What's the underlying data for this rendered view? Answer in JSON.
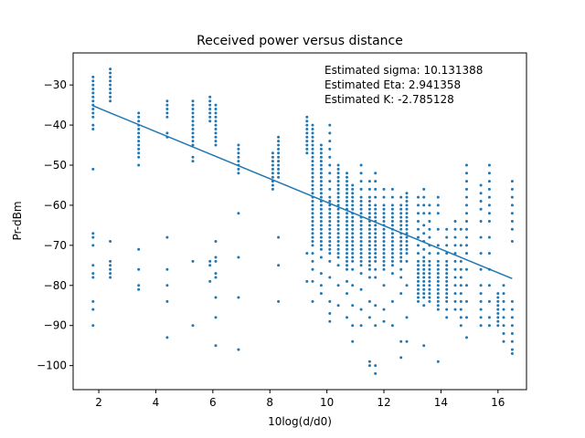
{
  "chart_data": {
    "type": "scatter",
    "title": "Received power versus distance",
    "xlabel": "10log(d/d0)",
    "ylabel": "Pr-dBm",
    "xlim": [
      1.1,
      17.0
    ],
    "ylim": [
      -106,
      -22
    ],
    "xticks": [
      2,
      4,
      6,
      8,
      10,
      12,
      14,
      16
    ],
    "yticks": [
      -30,
      -40,
      -50,
      -60,
      -70,
      -80,
      -90,
      -100
    ],
    "xtick_labels": [
      "2",
      "4",
      "6",
      "8",
      "10",
      "12",
      "14",
      "16"
    ],
    "ytick_labels": [
      "−30",
      "−40",
      "−50",
      "−60",
      "−70",
      "−80",
      "−90",
      "−100"
    ],
    "grid": false,
    "color": "#1f77b4",
    "annotations": [
      "Estimated sigma: 10.131388",
      "Estimated Eta: 2.941358",
      "Estimated K: -2.785128"
    ],
    "fit_line": {
      "x": [
        1.8,
        16.5
      ],
      "y": [
        -35.2,
        -78.3
      ]
    },
    "series": [
      {
        "clusters": [
          {
            "x": 1.8,
            "y": [
              -28,
              -29,
              -30,
              -31,
              -32,
              -33,
              -34,
              -35,
              -36,
              -37,
              -38,
              -40,
              -41,
              -51,
              -67,
              -68,
              -70,
              -75,
              -77,
              -78,
              -84,
              -86,
              -90
            ]
          },
          {
            "x": 2.4,
            "y": [
              -26,
              -27,
              -28,
              -29,
              -30,
              -31,
              -32,
              -33,
              -34,
              -69,
              -74,
              -75,
              -76,
              -77,
              -78
            ]
          },
          {
            "x": 3.4,
            "y": [
              -37,
              -38,
              -39,
              -40,
              -41,
              -42,
              -43,
              -44,
              -45,
              -46,
              -47,
              -48,
              -50,
              -71,
              -76,
              -80,
              -81
            ]
          },
          {
            "x": 4.4,
            "y": [
              -34,
              -35,
              -36,
              -37,
              -38,
              -42,
              -43,
              -68,
              -76,
              -80,
              -84,
              -93
            ]
          },
          {
            "x": 5.3,
            "y": [
              -34,
              -35,
              -36,
              -37,
              -38,
              -39,
              -40,
              -41,
              -42,
              -43,
              -44,
              -45,
              -48,
              -49,
              -74,
              -90
            ]
          },
          {
            "x": 5.9,
            "y": [
              -33,
              -34,
              -35,
              -36,
              -37,
              -38,
              -39,
              -74,
              -75,
              -79
            ]
          },
          {
            "x": 6.1,
            "y": [
              -35,
              -36,
              -37,
              -38,
              -39,
              -40,
              -41,
              -42,
              -43,
              -44,
              -45,
              -69,
              -73,
              -74,
              -77,
              -78,
              -83,
              -88,
              -95
            ]
          },
          {
            "x": 6.9,
            "y": [
              -45,
              -46,
              -47,
              -48,
              -49,
              -50,
              -51,
              -52,
              -62,
              -73,
              -83,
              -96
            ]
          },
          {
            "x": 8.1,
            "y": [
              -47,
              -48,
              -49,
              -50,
              -51,
              -52,
              -53,
              -54,
              -55,
              -56
            ]
          },
          {
            "x": 8.3,
            "y": [
              -43,
              -44,
              -45,
              -46,
              -47,
              -48,
              -49,
              -50,
              -51,
              -52,
              -53,
              -68,
              -75,
              -84
            ]
          },
          {
            "x": 9.3,
            "y": [
              -38,
              -39,
              -40,
              -41,
              -42,
              -43,
              -44,
              -45,
              -46,
              -47,
              -72,
              -79
            ]
          },
          {
            "x": 9.5,
            "y": [
              -40,
              -41,
              -42,
              -43,
              -44,
              -45,
              -46,
              -47,
              -48,
              -49,
              -50,
              -51,
              -52,
              -53,
              -54,
              -55,
              -56,
              -57,
              -58,
              -59,
              -60,
              -61,
              -62,
              -63,
              -64,
              -65,
              -66,
              -67,
              -68,
              -69,
              -70,
              -72,
              -74,
              -76,
              -79,
              -84
            ]
          },
          {
            "x": 9.8,
            "y": [
              -45,
              -46,
              -47,
              -48,
              -49,
              -50,
              -51,
              -52,
              -53,
              -54,
              -55,
              -56,
              -57,
              -58,
              -59,
              -60,
              -61,
              -62,
              -63,
              -64,
              -65,
              -66,
              -67,
              -68,
              -69,
              -70,
              -71,
              -73,
              -77,
              -80,
              -82
            ]
          },
          {
            "x": 10.1,
            "y": [
              -40,
              -42,
              -44,
              -46,
              -48,
              -50,
              -52,
              -54,
              -56,
              -58,
              -59,
              -60,
              -61,
              -62,
              -63,
              -64,
              -65,
              -66,
              -67,
              -68,
              -69,
              -70,
              -71,
              -72,
              -74,
              -78,
              -84,
              -87,
              -89
            ]
          },
          {
            "x": 10.4,
            "y": [
              -50,
              -51,
              -52,
              -53,
              -54,
              -55,
              -56,
              -57,
              -58,
              -59,
              -60,
              -61,
              -62,
              -63,
              -64,
              -65,
              -66,
              -67,
              -68,
              -69,
              -70,
              -71,
              -72,
              -73,
              -75,
              -80,
              -85
            ]
          },
          {
            "x": 10.7,
            "y": [
              -52,
              -53,
              -54,
              -55,
              -56,
              -57,
              -58,
              -59,
              -60,
              -61,
              -62,
              -63,
              -64,
              -65,
              -66,
              -67,
              -68,
              -69,
              -70,
              -71,
              -72,
              -73,
              -74,
              -75,
              -76,
              -79,
              -82,
              -88
            ]
          },
          {
            "x": 10.9,
            "y": [
              -55,
              -56,
              -57,
              -58,
              -59,
              -60,
              -61,
              -62,
              -63,
              -64,
              -65,
              -66,
              -67,
              -68,
              -69,
              -70,
              -71,
              -72,
              -73,
              -74,
              -76,
              -80,
              -85,
              -90,
              -94
            ]
          },
          {
            "x": 11.2,
            "y": [
              -50,
              -52,
              -54,
              -56,
              -58,
              -59,
              -60,
              -61,
              -62,
              -63,
              -64,
              -65,
              -66,
              -67,
              -68,
              -69,
              -70,
              -71,
              -72,
              -73,
              -74,
              -75,
              -77,
              -81,
              -86,
              -90
            ]
          },
          {
            "x": 11.5,
            "y": [
              -54,
              -56,
              -58,
              -59,
              -60,
              -61,
              -62,
              -63,
              -64,
              -65,
              -66,
              -67,
              -68,
              -69,
              -70,
              -71,
              -72,
              -73,
              -74,
              -75,
              -76,
              -78,
              -84,
              -88,
              -99,
              -100
            ]
          },
          {
            "x": 11.7,
            "y": [
              -52,
              -54,
              -56,
              -58,
              -60,
              -61,
              -62,
              -63,
              -64,
              -65,
              -66,
              -67,
              -68,
              -69,
              -70,
              -71,
              -72,
              -73,
              -74,
              -76,
              -78,
              -85,
              -90,
              -100,
              -102
            ]
          },
          {
            "x": 12.0,
            "y": [
              -56,
              -58,
              -60,
              -61,
              -62,
              -63,
              -64,
              -65,
              -66,
              -67,
              -68,
              -69,
              -70,
              -71,
              -72,
              -73,
              -74,
              -75,
              -76,
              -80,
              -86,
              -89
            ]
          },
          {
            "x": 12.3,
            "y": [
              -56,
              -58,
              -60,
              -61,
              -62,
              -63,
              -64,
              -65,
              -66,
              -67,
              -68,
              -69,
              -70,
              -71,
              -72,
              -73,
              -74,
              -75,
              -77,
              -84,
              -90
            ]
          },
          {
            "x": 12.6,
            "y": [
              -58,
              -60,
              -61,
              -62,
              -63,
              -64,
              -65,
              -66,
              -67,
              -68,
              -69,
              -70,
              -71,
              -72,
              -73,
              -74,
              -76,
              -78,
              -82,
              -94,
              -98
            ]
          },
          {
            "x": 12.8,
            "y": [
              -57,
              -58,
              -59,
              -60,
              -61,
              -62,
              -63,
              -64,
              -65,
              -66,
              -67,
              -68,
              -69,
              -70,
              -71,
              -72,
              -74,
              -80,
              -88,
              -94
            ]
          },
          {
            "x": 13.2,
            "y": [
              -58,
              -60,
              -62,
              -64,
              -66,
              -68,
              -70,
              -72,
              -74,
              -75,
              -76,
              -77,
              -78,
              -79,
              -80,
              -81,
              -82,
              -83,
              -84
            ]
          },
          {
            "x": 13.4,
            "y": [
              -56,
              -58,
              -60,
              -62,
              -65,
              -67,
              -69,
              -71,
              -73,
              -74,
              -75,
              -76,
              -77,
              -78,
              -79,
              -80,
              -81,
              -82,
              -83,
              -85,
              -95
            ]
          },
          {
            "x": 13.6,
            "y": [
              -60,
              -62,
              -64,
              -66,
              -68,
              -70,
              -72,
              -74,
              -75,
              -76,
              -77,
              -78,
              -79,
              -80,
              -81,
              -82,
              -83,
              -84
            ]
          },
          {
            "x": 13.9,
            "y": [
              -58,
              -60,
              -62,
              -66,
              -70,
              -72,
              -74,
              -75,
              -76,
              -77,
              -78,
              -79,
              -80,
              -81,
              -82,
              -83,
              -84,
              -85,
              -86,
              -99
            ]
          },
          {
            "x": 14.2,
            "y": [
              -66,
              -68,
              -70,
              -72,
              -74,
              -75,
              -76,
              -77,
              -78,
              -79,
              -80,
              -81,
              -82,
              -83,
              -84,
              -86,
              -88
            ]
          },
          {
            "x": 14.5,
            "y": [
              -64,
              -66,
              -68,
              -70,
              -72,
              -74,
              -76,
              -78,
              -80,
              -82,
              -84,
              -86
            ]
          },
          {
            "x": 14.7,
            "y": [
              -66,
              -70,
              -74,
              -76,
              -78,
              -80,
              -82,
              -84,
              -86,
              -88,
              -90
            ]
          },
          {
            "x": 14.9,
            "y": [
              -50,
              -52,
              -54,
              -56,
              -58,
              -60,
              -62,
              -64,
              -66,
              -68,
              -70,
              -72,
              -76,
              -80,
              -84,
              -88,
              -93
            ]
          },
          {
            "x": 15.4,
            "y": [
              -55,
              -57,
              -59,
              -61,
              -64,
              -68,
              -72,
              -76,
              -80,
              -82,
              -84,
              -86,
              -88,
              -90
            ]
          },
          {
            "x": 15.7,
            "y": [
              -50,
              -52,
              -54,
              -56,
              -58,
              -60,
              -62,
              -64,
              -68,
              -72,
              -76,
              -80,
              -84,
              -88,
              -90
            ]
          },
          {
            "x": 16.0,
            "y": [
              -82,
              -83,
              -84,
              -85,
              -86,
              -87,
              -88,
              -89,
              -90
            ]
          },
          {
            "x": 16.2,
            "y": [
              -80,
              -82,
              -84,
              -86,
              -88,
              -90,
              -92,
              -94
            ]
          },
          {
            "x": 16.5,
            "y": [
              -54,
              -56,
              -58,
              -60,
              -62,
              -64,
              -66,
              -69,
              -84,
              -86,
              -88,
              -90,
              -92,
              -94,
              -96,
              -97
            ]
          }
        ]
      }
    ]
  }
}
